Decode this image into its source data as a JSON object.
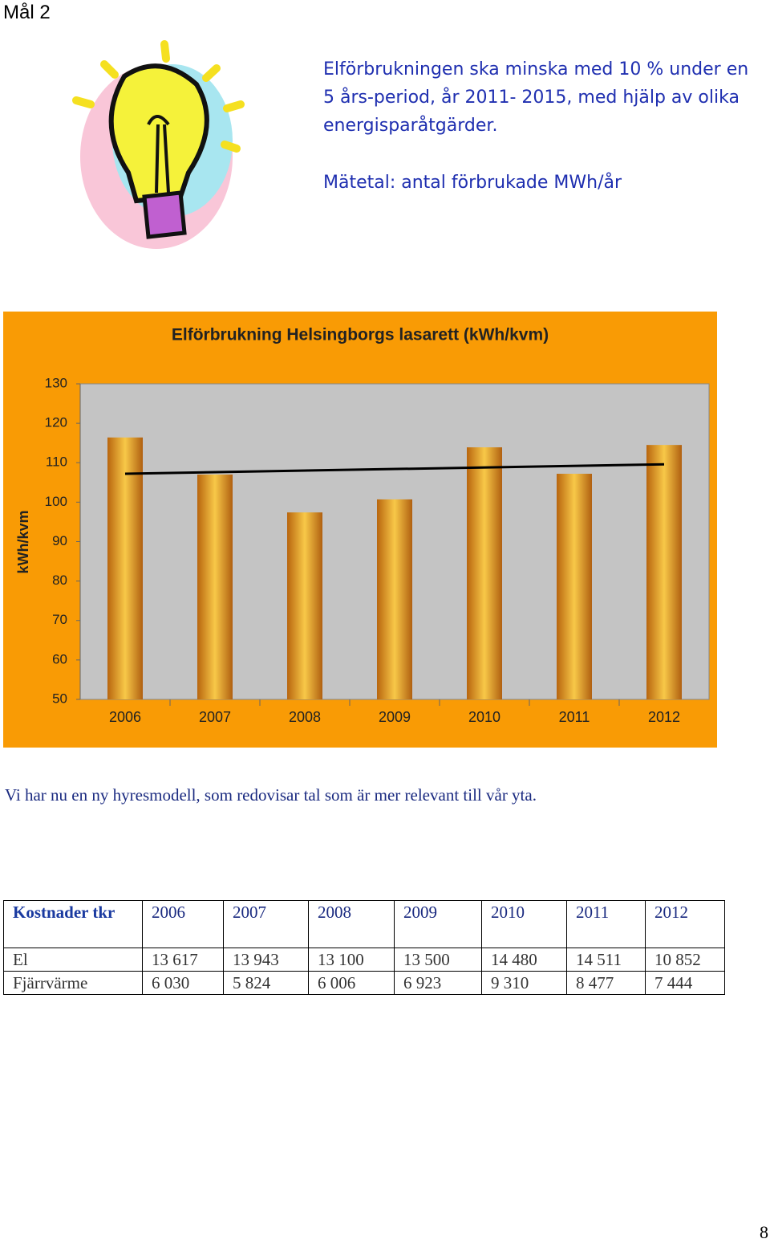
{
  "heading": "Mål 2",
  "goal_lines": [
    "Elförbrukningen ska minska med 10 % under en",
    "5 års-period, år 2011- 2015, med hjälp av olika",
    "energisparåtgärder."
  ],
  "metric": "Mätetal: antal förbrukade MWh/år",
  "chart_data": {
    "type": "bar",
    "title": "Elförbrukning Helsingborgs lasarett (kWh/kvm)",
    "ylabel": "kWh/kvm",
    "categories": [
      "2006",
      "2007",
      "2008",
      "2009",
      "2010",
      "2011",
      "2012"
    ],
    "values": [
      116.4,
      107.0,
      97.4,
      100.7,
      113.9,
      107.2,
      114.5
    ],
    "trendline": [
      107.2,
      109.6
    ],
    "ylim": [
      50,
      130
    ],
    "yticks": [
      50,
      60,
      70,
      80,
      90,
      100,
      110,
      120,
      130
    ],
    "background": "#f99b05",
    "plot_background": "#c4c4c4",
    "trend_color": "#000000"
  },
  "paragraph": "Vi har nu en ny hyresmodell, som redovisar tal som är mer relevant till vår yta.",
  "table": {
    "header": [
      "Kostnader tkr",
      "2006",
      "2007",
      "2008",
      "2009",
      "2010",
      "2011",
      "2012"
    ],
    "rows": [
      [
        "El",
        "13 617",
        "13 943",
        "13 100",
        "13 500",
        "14 480",
        "14 511",
        "10 852"
      ],
      [
        "Fjärrvärme",
        "6 030",
        "5 824",
        "6 006",
        "6 923",
        "9 310",
        "8 477",
        "7 444"
      ]
    ]
  },
  "page_number": "8"
}
